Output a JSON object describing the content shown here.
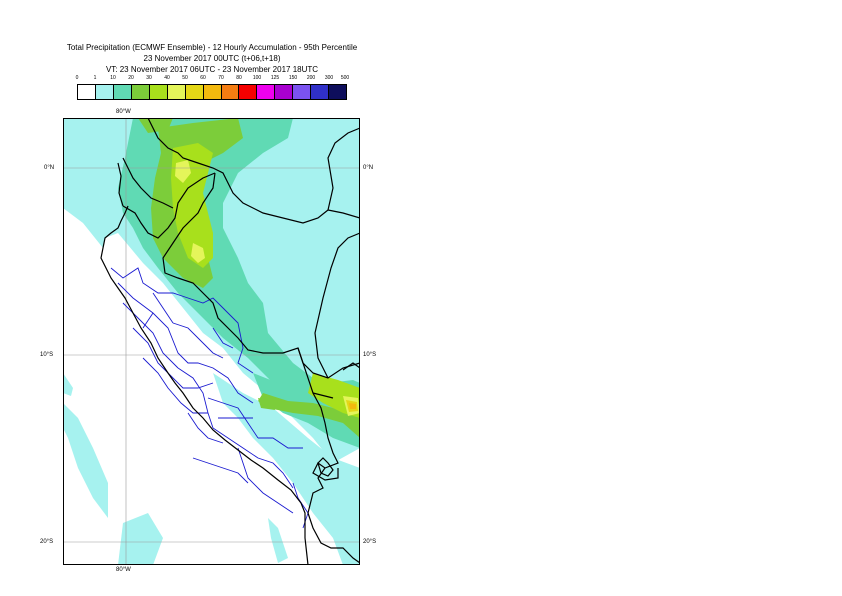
{
  "header": {
    "line1": "Total Precipitation (ECMWF Ensemble) - 12 Hourly Accumulation - 95th Percentile",
    "line2": "23 November 2017 00UTC (t+06,t+18)",
    "line3": "VT: 23 November 2017 06UTC - 23 November 2017 18UTC"
  },
  "legend": {
    "labels": [
      "0",
      "1",
      "10",
      "20",
      "30",
      "40",
      "50",
      "60",
      "70",
      "80",
      "100",
      "125",
      "150",
      "200",
      "300",
      "500"
    ],
    "colors": [
      "#ffffff",
      "#a6f2ef",
      "#60dab4",
      "#7ccd3a",
      "#a8e01c",
      "#e4f55a",
      "#e4d716",
      "#f3b90e",
      "#f57d12",
      "#f50000",
      "#ee00ee",
      "#a800d0",
      "#7b53f0",
      "#3030c8",
      "#0e0e5c"
    ]
  },
  "map_labels": {
    "lon_top": "80°W",
    "lon_bottom": "80°W",
    "lat_0_left": "0°N",
    "lat_0_right": "0°N",
    "lat_10_left": "10°S",
    "lat_10_right": "10°S",
    "lat_20_left": "20°S",
    "lat_20_right": "20°S"
  }
}
